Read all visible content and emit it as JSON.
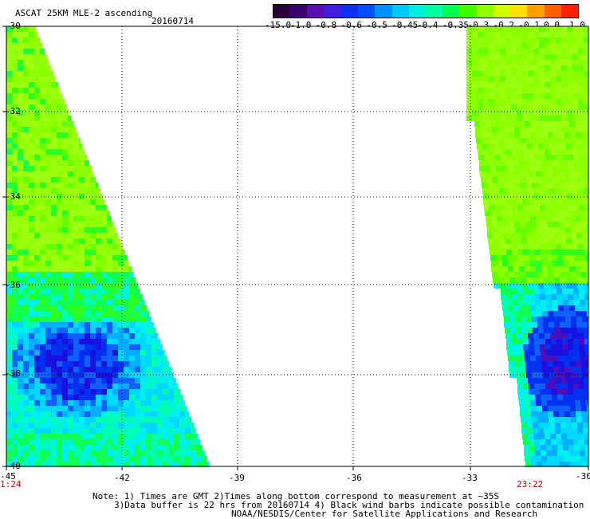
{
  "header": {
    "title": "ASCAT 25KM MLE-2 ascending",
    "date": "20160714"
  },
  "colorbar": {
    "labels": [
      "-15.0",
      "-1.0",
      "-0.8",
      "-0.6",
      "-0.5",
      "-0.45",
      "-0.4",
      "-0.35",
      "-0.3",
      "-0.2",
      "-0.1",
      "0.0",
      "1.0"
    ],
    "colors": [
      "#2a0038",
      "#3c0070",
      "#5a10b0",
      "#4020d8",
      "#1030f0",
      "#0050ff",
      "#0090ff",
      "#00c8ff",
      "#00f0e0",
      "#00ffa0",
      "#00ff50",
      "#40ff00",
      "#90ff00",
      "#d0ff00",
      "#ffe000",
      "#ffa000",
      "#ff6000",
      "#ff2000"
    ]
  },
  "map": {
    "lon_ticks": [
      "-45",
      "-42",
      "-39",
      "-36",
      "-33",
      "-30"
    ],
    "lat_ticks": [
      "-30",
      "-32",
      "-34",
      "-36",
      "-38",
      "-40"
    ],
    "time_left": "1:24",
    "time_right": "23:22"
  },
  "notes": {
    "line1": "Note: 1) Times are GMT 2)Times along bottom correspond to measurement at ~35S",
    "line2": "3)Data buffer is 22 hrs from 20160714 4) Black wind barbs indicate possible contamination",
    "line3": "NOAA/NESDIS/Center for Satellite Applications and Research"
  }
}
